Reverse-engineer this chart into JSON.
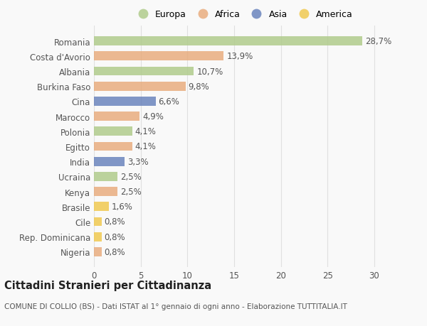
{
  "categories": [
    "Romania",
    "Costa d'Avorio",
    "Albania",
    "Burkina Faso",
    "Cina",
    "Marocco",
    "Polonia",
    "Egitto",
    "India",
    "Ucraina",
    "Kenya",
    "Brasile",
    "Cile",
    "Rep. Dominicana",
    "Nigeria"
  ],
  "values": [
    28.7,
    13.9,
    10.7,
    9.8,
    6.6,
    4.9,
    4.1,
    4.1,
    3.3,
    2.5,
    2.5,
    1.6,
    0.8,
    0.8,
    0.8
  ],
  "labels": [
    "28,7%",
    "13,9%",
    "10,7%",
    "9,8%",
    "6,6%",
    "4,9%",
    "4,1%",
    "4,1%",
    "3,3%",
    "2,5%",
    "2,5%",
    "1,6%",
    "0,8%",
    "0,8%",
    "0,8%"
  ],
  "continents": [
    "Europa",
    "Africa",
    "Europa",
    "Africa",
    "Asia",
    "Africa",
    "Europa",
    "Africa",
    "Asia",
    "Europa",
    "Africa",
    "America",
    "America",
    "America",
    "Africa"
  ],
  "continent_colors": {
    "Europa": "#aeca88",
    "Africa": "#e8aa7a",
    "Asia": "#6680bb",
    "America": "#f0c84a"
  },
  "legend_order": [
    "Europa",
    "Africa",
    "Asia",
    "America"
  ],
  "title": "Cittadini Stranieri per Cittadinanza",
  "subtitle": "COMUNE DI COLLIO (BS) - Dati ISTAT al 1° gennaio di ogni anno - Elaborazione TUTTITALIA.IT",
  "xlim": [
    0,
    32
  ],
  "xticks": [
    0,
    5,
    10,
    15,
    20,
    25,
    30
  ],
  "background_color": "#f9f9f9",
  "grid_color": "#e0e0e0",
  "bar_height": 0.6,
  "label_fontsize": 8.5,
  "tick_fontsize": 8.5,
  "title_fontsize": 10.5,
  "subtitle_fontsize": 7.5
}
